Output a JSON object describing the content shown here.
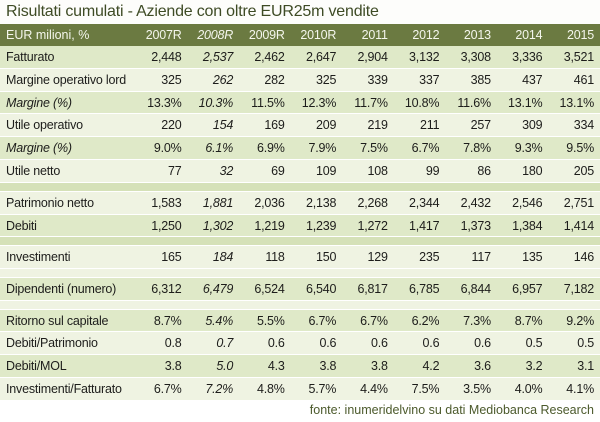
{
  "chart_data": {
    "type": "table",
    "title": "Risultati cumulati - Aziende con oltre EUR25m vendite",
    "footer": "fonte: inumeridelvino su dati Mediobanca Research",
    "columns": [
      "EUR milioni, %",
      "2007R",
      "2008R",
      "2009R",
      "2010R",
      "2011",
      "2012",
      "2013",
      "2014",
      "2015"
    ],
    "italic_column": "2008R",
    "rows": [
      {
        "label": "Fatturato",
        "italic": false,
        "shade": "medium",
        "values": [
          "2,448",
          "2,537",
          "2,462",
          "2,647",
          "2,904",
          "3,132",
          "3,308",
          "3,336",
          "3,521"
        ]
      },
      {
        "label": "Margine operativo lord",
        "italic": false,
        "shade": "lightest",
        "values": [
          "325",
          "262",
          "282",
          "325",
          "339",
          "337",
          "385",
          "437",
          "461"
        ]
      },
      {
        "label": "Margine (%)",
        "italic": true,
        "shade": "medium",
        "values": [
          "13.3%",
          "10.3%",
          "11.5%",
          "12.3%",
          "11.7%",
          "10.8%",
          "11.6%",
          "13.1%",
          "13.1%"
        ]
      },
      {
        "label": "Utile operativo",
        "italic": false,
        "shade": "lightest",
        "values": [
          "220",
          "154",
          "169",
          "209",
          "219",
          "211",
          "257",
          "309",
          "334"
        ]
      },
      {
        "label": "Margine (%)",
        "italic": true,
        "shade": "medium",
        "values": [
          "9.0%",
          "6.1%",
          "6.9%",
          "7.9%",
          "7.5%",
          "6.7%",
          "7.8%",
          "9.3%",
          "9.5%"
        ]
      },
      {
        "label": "Utile netto",
        "italic": false,
        "shade": "lightest",
        "values": [
          "77",
          "32",
          "69",
          "109",
          "108",
          "99",
          "86",
          "180",
          "205"
        ]
      },
      {
        "spacer": true,
        "shade": "sage"
      },
      {
        "label": "Patrimonio netto",
        "italic": false,
        "shade": "lightest",
        "values": [
          "1,583",
          "1,881",
          "2,036",
          "2,138",
          "2,268",
          "2,344",
          "2,432",
          "2,546",
          "2,751"
        ]
      },
      {
        "label": "Debiti",
        "italic": false,
        "shade": "medium",
        "values": [
          "1,250",
          "1,302",
          "1,219",
          "1,239",
          "1,272",
          "1,417",
          "1,373",
          "1,384",
          "1,414"
        ]
      },
      {
        "spacer": true,
        "shade": "sage"
      },
      {
        "label": "Investimenti",
        "italic": false,
        "shade": "lightest",
        "values": [
          "165",
          "184",
          "118",
          "150",
          "129",
          "235",
          "117",
          "135",
          "146"
        ]
      },
      {
        "spacer": true,
        "shade": "lightest"
      },
      {
        "label": "Dipendenti (numero)",
        "italic": false,
        "shade": "medium",
        "values": [
          "6,312",
          "6,479",
          "6,524",
          "6,540",
          "6,817",
          "6,785",
          "6,844",
          "6,957",
          "7,182"
        ]
      },
      {
        "spacer": true,
        "shade": "lightest"
      },
      {
        "label": "Ritorno sul capitale",
        "italic": false,
        "shade": "medium",
        "values": [
          "8.7%",
          "5.4%",
          "5.5%",
          "6.7%",
          "6.7%",
          "6.2%",
          "7.3%",
          "8.7%",
          "9.2%"
        ]
      },
      {
        "label": "Debiti/Patrimonio",
        "italic": false,
        "shade": "lightest",
        "values": [
          "0.8",
          "0.7",
          "0.6",
          "0.6",
          "0.6",
          "0.6",
          "0.6",
          "0.5",
          "0.5"
        ]
      },
      {
        "label": "Debiti/MOL",
        "italic": false,
        "shade": "medium",
        "values": [
          "3.8",
          "5.0",
          "4.3",
          "3.8",
          "3.8",
          "4.2",
          "3.6",
          "3.2",
          "3.1"
        ]
      },
      {
        "label": "Investimenti/Fatturato",
        "italic": false,
        "shade": "lightest",
        "values": [
          "6.7%",
          "7.2%",
          "4.8%",
          "5.7%",
          "4.4%",
          "7.5%",
          "3.5%",
          "4.0%",
          "4.1%"
        ]
      }
    ]
  },
  "colors": {
    "header_bg": "#6b7a41",
    "header_text": "#f4f6ec",
    "row_lightest": "#eff3e2",
    "row_medium": "#dfe9c8",
    "row_sage": "#d5e1b8",
    "title_text": "#3e4b25",
    "footer_text": "#4c5a2c",
    "data_text": "#1d1d1b"
  }
}
